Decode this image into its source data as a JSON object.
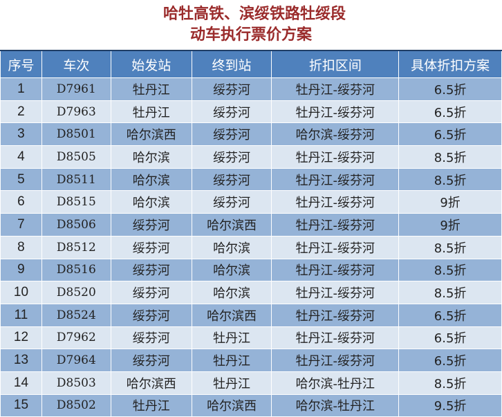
{
  "title": {
    "line1": "哈牡高铁、滨绥铁路牡绥段",
    "line2": "动车执行票价方案"
  },
  "colors": {
    "header": "#4f81bd",
    "row_odd": "#95b3d7",
    "row_even": "#dce6f1",
    "title": "#9a2b2b"
  },
  "table": {
    "headers": [
      "序号",
      "车次",
      "始发站",
      "终到站",
      "折扣区间",
      "具体折扣方案"
    ],
    "rows": [
      [
        "1",
        "D7961",
        "牡丹江",
        "绥芬河",
        "牡丹江-绥芬河",
        "6.5折"
      ],
      [
        "2",
        "D7963",
        "牡丹江",
        "绥芬河",
        "牡丹江-绥芬河",
        "6.5折"
      ],
      [
        "3",
        "D8501",
        "哈尔滨西",
        "绥芬河",
        "哈尔滨-绥芬河",
        "6.5折"
      ],
      [
        "4",
        "D8505",
        "哈尔滨",
        "绥芬河",
        "牡丹江-绥芬河",
        "8.5折"
      ],
      [
        "5",
        "D8511",
        "哈尔滨",
        "绥芬河",
        "牡丹江-绥芬河",
        "8.5折"
      ],
      [
        "6",
        "D8515",
        "哈尔滨",
        "绥芬河",
        "牡丹江-绥芬河",
        "9折"
      ],
      [
        "7",
        "D8506",
        "绥芬河",
        "哈尔滨西",
        "牡丹江-绥芬河",
        "9折"
      ],
      [
        "8",
        "D8512",
        "绥芬河",
        "哈尔滨",
        "牡丹江-绥芬河",
        "8.5折"
      ],
      [
        "9",
        "D8516",
        "绥芬河",
        "哈尔滨",
        "牡丹江-绥芬河",
        "8.5折"
      ],
      [
        "10",
        "D8520",
        "绥芬河",
        "哈尔滨",
        "牡丹江-绥芬河",
        "8.5折"
      ],
      [
        "11",
        "D8524",
        "绥芬河",
        "哈尔滨西",
        "牡丹江-绥芬河",
        "6.5折"
      ],
      [
        "12",
        "D7962",
        "绥芬河",
        "牡丹江",
        "牡丹江-绥芬河",
        "6.5折"
      ],
      [
        "13",
        "D7964",
        "绥芬河",
        "牡丹江",
        "牡丹江-绥芬河",
        "6.5折"
      ],
      [
        "14",
        "D8503",
        "哈尔滨西",
        "牡丹江",
        "哈尔滨-牡丹江",
        "8.5折"
      ],
      [
        "15",
        "D8502",
        "牡丹江",
        "哈尔滨西",
        "哈尔滨-牡丹江",
        "9.5折"
      ]
    ]
  }
}
